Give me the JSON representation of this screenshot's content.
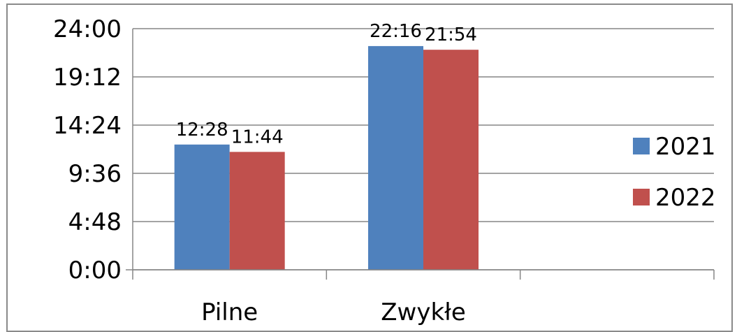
{
  "chart_data": {
    "type": "bar",
    "categories": [
      "Pilne",
      "Zwykłe"
    ],
    "category_slots": 3,
    "series": [
      {
        "name": "2021",
        "color": "#4f81bd",
        "values_hours": [
          12.4667,
          22.2667
        ],
        "labels": [
          "12:28",
          "22:16"
        ]
      },
      {
        "name": "2022",
        "color": "#c0504d",
        "values_hours": [
          11.7333,
          21.9
        ],
        "labels": [
          "11:44",
          "21:54"
        ]
      }
    ],
    "y_axis": {
      "unit": "hours",
      "ylim": [
        0,
        24
      ],
      "ticks": [
        0,
        4.8,
        9.6,
        14.4,
        19.2,
        24
      ],
      "tick_labels": [
        "0:00",
        "4:48",
        "9:36",
        "14:24",
        "19:12",
        "24:00"
      ]
    },
    "title": "",
    "xlabel": "",
    "ylabel": "",
    "grid": true,
    "legend_position": "right"
  }
}
